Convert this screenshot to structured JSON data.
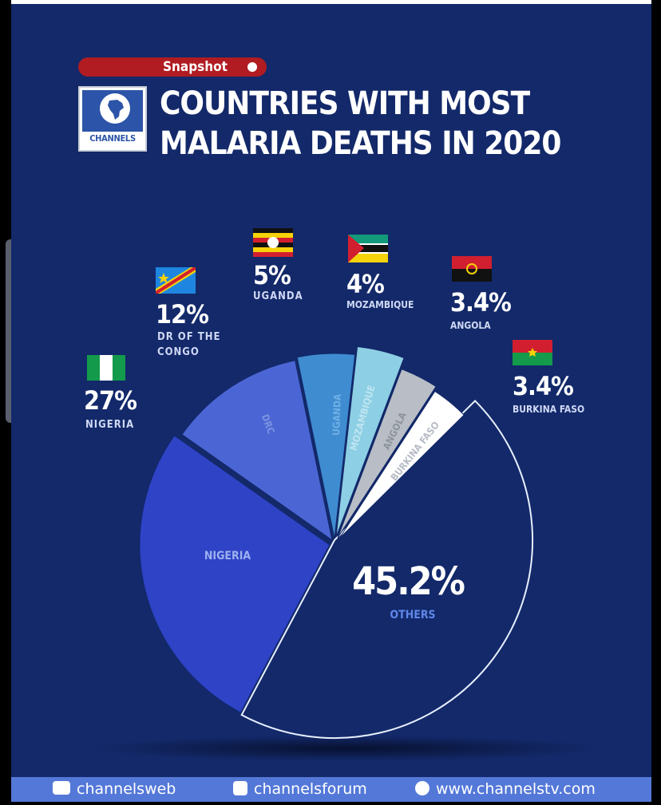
{
  "header": {
    "badge": "Snapshot",
    "logo_text": "CHANNELS",
    "title_line1": "COUNTRIES WITH MOST",
    "title_line2": "MALARIA DEATHS IN 2020"
  },
  "footer": {
    "youtube": "channelsweb",
    "facebook": "channelsforum",
    "website": "www.channelstv.com"
  },
  "colors": {
    "background": "#13296a",
    "others": "#13296a",
    "nigeria": "#2e43c6",
    "drc": "#4b66d4",
    "uganda": "#3f8cd1",
    "mozambique": "#8dcfe4",
    "angola": "#b9bec6",
    "burkina_faso": "#ffffff"
  },
  "chart_data": {
    "type": "pie",
    "title": "COUNTRIES WITH MOST MALARIA DEATHS IN 2020",
    "slices": [
      {
        "key": "others",
        "value_label": "45.2%",
        "name": "OTHERS",
        "inner_label": "",
        "value": 45.2,
        "color": "#13296a"
      },
      {
        "key": "nigeria",
        "value_label": "27%",
        "name": "NIGERIA",
        "inner_label": "NIGERIA",
        "value": 27,
        "color": "#2e43c6"
      },
      {
        "key": "drc",
        "value_label": "12%",
        "name_line1": "DR OF THE",
        "name_line2": "CONGO",
        "inner_label": "DRC",
        "value": 12,
        "color": "#4b66d4"
      },
      {
        "key": "uganda",
        "value_label": "5%",
        "name": "UGANDA",
        "inner_label": "UGANDA",
        "value": 5,
        "color": "#3f8cd1"
      },
      {
        "key": "mozambique",
        "value_label": "4%",
        "name": "MOZAMBIQUE",
        "inner_label": "MOZAMBIQUE",
        "value": 4,
        "color": "#8dcfe4"
      },
      {
        "key": "angola",
        "value_label": "3.4%",
        "name": "ANGOLA",
        "inner_label": "ANGOLA",
        "value": 3.4,
        "color": "#b9bec6"
      },
      {
        "key": "burkina_faso",
        "value_label": "3.4%",
        "name": "BURKINA FASO",
        "inner_label": "BURKINA FASO",
        "value": 3.4,
        "color": "#ffffff"
      }
    ]
  }
}
